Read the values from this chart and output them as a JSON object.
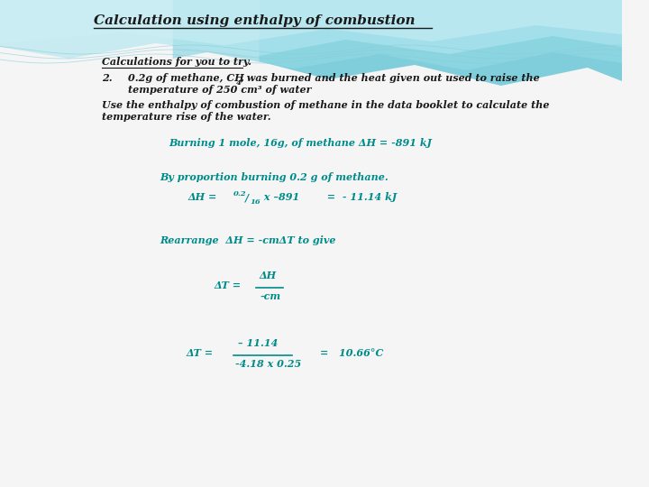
{
  "title": "Calculation using enthalpy of combustion",
  "bg_color": "#f5f5f5",
  "teal_color": "#008B8B",
  "dark_color": "#1a1a1a",
  "wave_color1": "#7dd4e0",
  "wave_color2": "#a8e0eb",
  "wave_color3": "#c5eaf2",
  "wave_color4": "#dff4f8",
  "line1": "Calculations for you to try.",
  "line2_num": "2.",
  "line2_text1": "0.2g of methane, CH",
  "line2_sub": "4",
  "line2_text2": ", was burned and the heat given out used to raise the",
  "line3": "temperature of 250 cm³ of water",
  "line4": "Use the enthalpy of combustion of methane in the data booklet to calculate the",
  "line5": "temperature rise of the water.",
  "line6": "Burning 1 mole, 16g, of methane ΔH = -891 kJ",
  "line7": "By proportion burning 0.2 g of methane.",
  "dh_prefix": "ΔH =  ",
  "frac1_top": "0.2",
  "frac1_bot": "16",
  "dh_rest": " x –891",
  "dh_result": "  =  - 11.14 kJ",
  "rearrange": "Rearrange  ΔH = -cmΔT to give",
  "dt1_prefix": "ΔT =  ",
  "frac2_top": "ΔH",
  "frac2_bot": "-cm",
  "dt2_prefix": "ΔT =",
  "frac3_top": "– 11.14",
  "frac3_bot": "-4.18 x 0.25",
  "result": "=   10.66°C"
}
